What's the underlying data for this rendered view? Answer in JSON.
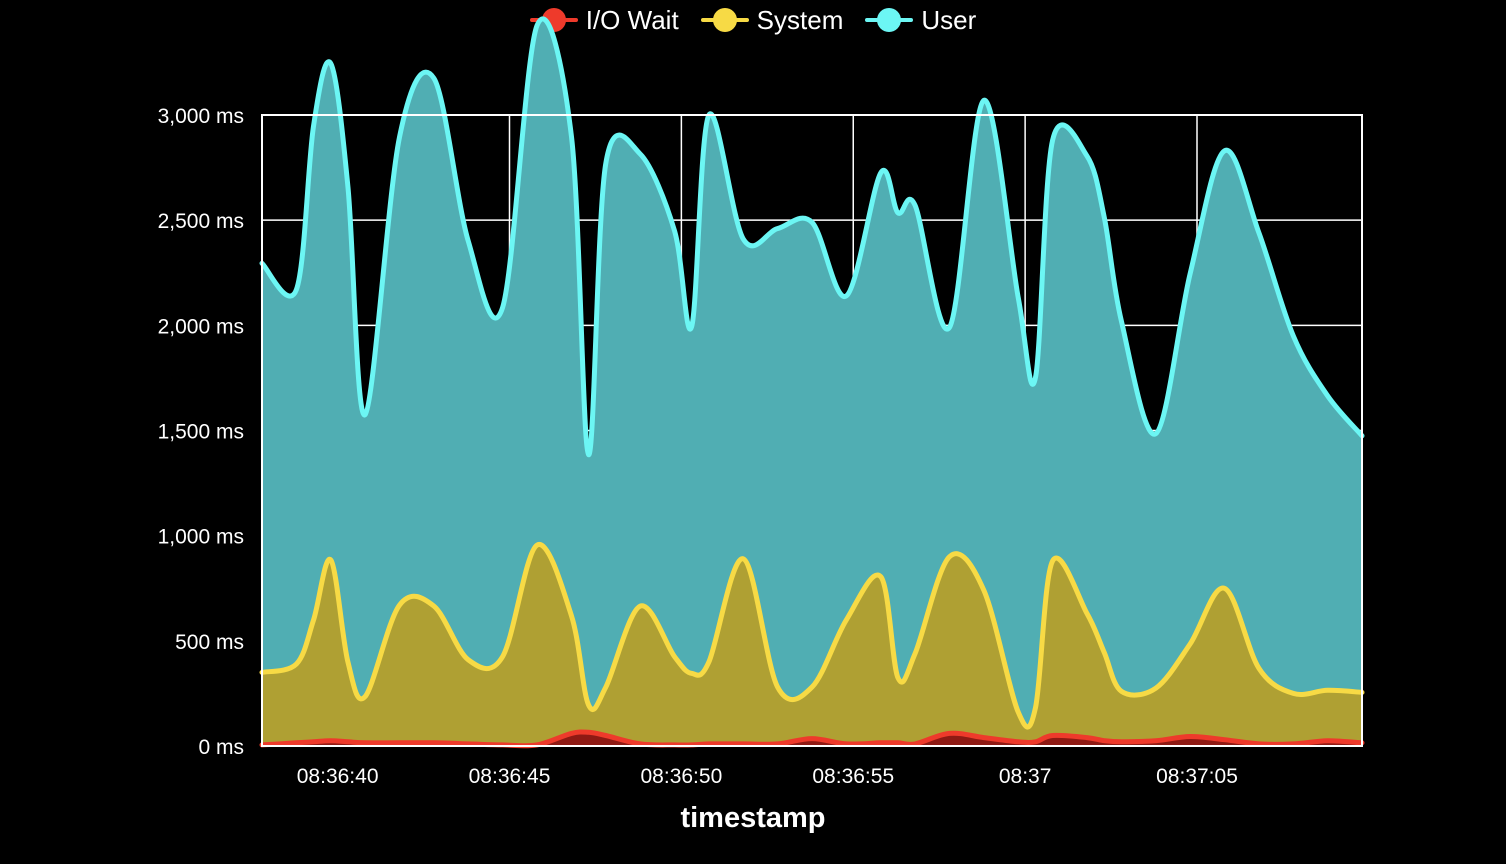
{
  "chart_data": {
    "type": "area",
    "title": "",
    "xlabel": "timestamp",
    "ylabel": "",
    "ylim": [
      0,
      3000
    ],
    "y_unit": "ms",
    "y_ticks": [
      0,
      500,
      1000,
      1500,
      2000,
      2500,
      3000
    ],
    "y_tick_labels": [
      "0 ms",
      "500 ms",
      "1,000 ms",
      "1,500 ms",
      "2,000 ms",
      "2,500 ms",
      "3,000 ms"
    ],
    "x_tick_labels": [
      "08:36:40",
      "08:36:45",
      "08:36:50",
      "08:36:55",
      "08:37",
      "08:37:05"
    ],
    "xlim": [
      "08:36:37.8",
      "08:37:09.8"
    ],
    "x_ticks": [
      "08:36:40",
      "08:36:45",
      "08:36:50",
      "08:36:55",
      "08:37:00",
      "08:37:05"
    ],
    "x": [
      "08:36:37.8",
      "08:36:38.8",
      "08:36:39.3",
      "08:36:39.8",
      "08:36:40.3",
      "08:36:40.8",
      "08:36:41.8",
      "08:36:42.8",
      "08:36:43.8",
      "08:36:44.8",
      "08:36:45.8",
      "08:36:46.8",
      "08:36:47.3",
      "08:36:47.8",
      "08:36:48.8",
      "08:36:49.8",
      "08:36:50.3",
      "08:36:50.8",
      "08:36:51.8",
      "08:36:52.8",
      "08:36:53.8",
      "08:36:54.8",
      "08:36:55.8",
      "08:36:56.3",
      "08:36:56.8",
      "08:36:57.8",
      "08:36:58.8",
      "08:36:59.8",
      "08:37:00.3",
      "08:37:00.8",
      "08:37:01.8",
      "08:37:02.3",
      "08:37:02.8",
      "08:37:03.8",
      "08:37:04.8",
      "08:37:05.8",
      "08:37:06.8",
      "08:37:07.8",
      "08:37:08.8",
      "08:37:09.8"
    ],
    "grid": true,
    "legend_position": "top-center",
    "stacked": true,
    "series": [
      {
        "name": "I/O Wait",
        "color": "#ee3a2b",
        "values": [
          5,
          15,
          20,
          25,
          20,
          15,
          15,
          15,
          10,
          5,
          5,
          60,
          65,
          50,
          10,
          5,
          5,
          10,
          10,
          10,
          35,
          10,
          15,
          15,
          10,
          60,
          40,
          20,
          20,
          50,
          40,
          25,
          20,
          25,
          45,
          30,
          10,
          10,
          25,
          15
        ]
      },
      {
        "name": "System",
        "color": "#f7da45",
        "values": [
          345,
          375,
          580,
          860,
          380,
          220,
          655,
          650,
          400,
          420,
          950,
          560,
          130,
          230,
          655,
          420,
          340,
          390,
          880,
          270,
          245,
          590,
          790,
          310,
          430,
          840,
          700,
          140,
          160,
          830,
          590,
          420,
          240,
          250,
          440,
          720,
          360,
          240,
          240,
          240
        ]
      },
      {
        "name": "User",
        "color": "#6cf6f4",
        "values": [
          1945,
          1780,
          2350,
          2360,
          2260,
          1340,
          2225,
          2510,
          1990,
          1660,
          2470,
          2280,
          1190,
          2490,
          2150,
          2025,
          1650,
          2600,
          1520,
          2180,
          2210,
          1540,
          1920,
          2210,
          2130,
          1090,
          2330,
          1970,
          1570,
          2000,
          2175,
          2070,
          1760,
          1210,
          1760,
          2080,
          2070,
          1700,
          1400,
          1220
        ]
      }
    ]
  }
}
